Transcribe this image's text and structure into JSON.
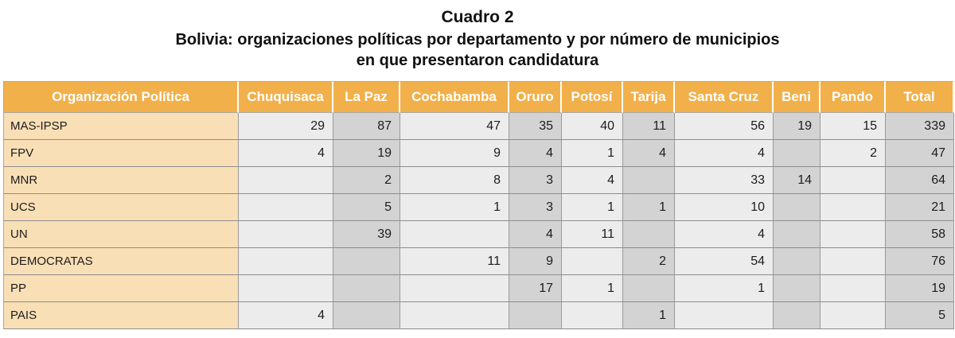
{
  "caption": {
    "title": "Cuadro 2",
    "subtitle_line1": "Bolivia: organizaciones políticas por departamento y por número de municipios",
    "subtitle_line2": "en que presentaron candidatura"
  },
  "table": {
    "headers": [
      "Organización Política",
      "Chuquisaca",
      "La Paz",
      "Cochabamba",
      "Oruro",
      "Potosí",
      "Tarija",
      "Santa Cruz",
      "Beni",
      "Pando",
      "Total"
    ],
    "rows": [
      [
        "MAS-IPSP",
        "29",
        "87",
        "47",
        "35",
        "40",
        "11",
        "56",
        "19",
        "15",
        "339"
      ],
      [
        "FPV",
        "4",
        "19",
        "9",
        "4",
        "1",
        "4",
        "4",
        "",
        "2",
        "47"
      ],
      [
        "MNR",
        "",
        "2",
        "8",
        "3",
        "4",
        "",
        "33",
        "14",
        "",
        "64"
      ],
      [
        "UCS",
        "",
        "5",
        "1",
        "3",
        "1",
        "1",
        "10",
        "",
        "",
        "21"
      ],
      [
        "UN",
        "",
        "39",
        "",
        "4",
        "11",
        "",
        "4",
        "",
        "",
        "58"
      ],
      [
        "DEMOCRATAS",
        "",
        "",
        "11",
        "9",
        "",
        "2",
        "54",
        "",
        "",
        "76"
      ],
      [
        "PP",
        "",
        "",
        "",
        "17",
        "1",
        "",
        "1",
        "",
        "",
        "19"
      ],
      [
        "PAIS",
        "4",
        "",
        "",
        "",
        "",
        "1",
        "",
        "",
        "",
        "5"
      ]
    ]
  },
  "colors": {
    "header_bg": "#f2b04a",
    "header_text": "#ffffff",
    "name_col_bg": "#f9dfb6",
    "cell_light": "#ececec",
    "cell_dark": "#d3d3d3"
  }
}
